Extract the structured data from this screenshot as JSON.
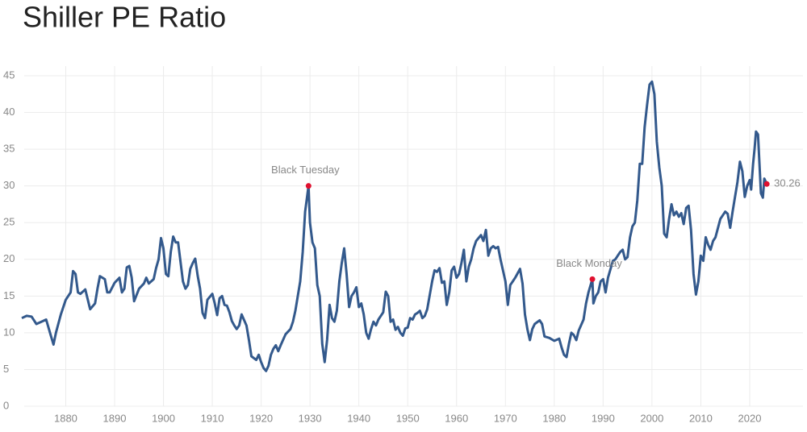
{
  "chart_data": {
    "type": "line",
    "title": "Shiller PE Ratio",
    "x": [
      1871,
      1872,
      1873,
      1874,
      1875,
      1876,
      1877,
      1877.5,
      1878,
      1879,
      1880,
      1881,
      1881.5,
      1882,
      1882.5,
      1883,
      1884,
      1885,
      1886,
      1886.5,
      1887,
      1888,
      1888.5,
      1889,
      1890,
      1891,
      1891.5,
      1892,
      1892.5,
      1893,
      1893.5,
      1894,
      1895,
      1896,
      1896.5,
      1897,
      1898,
      1898.5,
      1899,
      1899.5,
      1900,
      1900.5,
      1901,
      1901.5,
      1902,
      1902.5,
      1903,
      1904,
      1904.5,
      1905,
      1905.5,
      1906,
      1906.5,
      1907,
      1907.5,
      1908,
      1908.5,
      1909,
      1910,
      1910.5,
      1911,
      1911.5,
      1912,
      1912.5,
      1913,
      1913.5,
      1914,
      1914.5,
      1915,
      1915.5,
      1916,
      1917,
      1917.5,
      1918,
      1919,
      1919.5,
      1920,
      1920.5,
      1921,
      1921.5,
      1922,
      1922.5,
      1923,
      1923.5,
      1924,
      1925,
      1926,
      1926.5,
      1927,
      1928,
      1928.5,
      1929,
      1929.7,
      1930,
      1930.5,
      1931,
      1931.5,
      1932,
      1932.5,
      1933,
      1933.5,
      1934,
      1934.5,
      1935,
      1935.5,
      1936,
      1936.5,
      1937,
      1937.5,
      1938,
      1938.5,
      1939,
      1939.5,
      1940,
      1940.5,
      1941,
      1941.5,
      1942,
      1942.5,
      1943,
      1943.5,
      1944,
      1945,
      1945.5,
      1946,
      1946.5,
      1947,
      1947.5,
      1948,
      1948.5,
      1949,
      1949.5,
      1950,
      1950.5,
      1951,
      1951.5,
      1952,
      1952.5,
      1953,
      1953.5,
      1954,
      1955,
      1955.5,
      1956,
      1956.5,
      1957,
      1957.5,
      1958,
      1958.5,
      1959,
      1959.5,
      1960,
      1960.5,
      1961,
      1961.5,
      1962,
      1962.5,
      1963,
      1963.5,
      1964,
      1965,
      1965.5,
      1966,
      1966.5,
      1967,
      1967.5,
      1968,
      1968.5,
      1969,
      1970,
      1970.5,
      1971,
      1971.5,
      1972,
      1973,
      1973.5,
      1974,
      1974.5,
      1975,
      1975.5,
      1976,
      1977,
      1977.5,
      1978,
      1979,
      1980,
      1981,
      1981.5,
      1982,
      1982.5,
      1983,
      1983.5,
      1984,
      1984.5,
      1985,
      1986,
      1986.5,
      1987,
      1987.8,
      1988,
      1988.5,
      1989,
      1989.5,
      1990,
      1990.5,
      1991,
      1992,
      1992.5,
      1993,
      1993.5,
      1994,
      1994.5,
      1995,
      1995.5,
      1996,
      1996.5,
      1997,
      1997.5,
      1998,
      1998.5,
      1999,
      1999.5,
      2000,
      2000.5,
      2001,
      2001.5,
      2002,
      2002.5,
      2003,
      2003.5,
      2004,
      2004.5,
      2005,
      2005.5,
      2006,
      2006.5,
      2007,
      2007.5,
      2008,
      2008.5,
      2009,
      2009.5,
      2010,
      2010.5,
      2011,
      2011.5,
      2012,
      2012.5,
      2013,
      2014,
      2015,
      2015.5,
      2016,
      2016.5,
      2017,
      2017.5,
      2018,
      2018.5,
      2019,
      2019.5,
      2020,
      2020.3,
      2020.7,
      2021,
      2021.3,
      2021.7,
      2022,
      2022.3,
      2022.7,
      2023,
      2023.5
    ],
    "series": [
      {
        "color": "#33598c",
        "values": [
          12,
          12.3,
          12.2,
          11.2,
          11.5,
          11.8,
          9.5,
          8.4,
          10,
          12.5,
          14.5,
          15.5,
          18.4,
          18,
          15.5,
          15.3,
          15.9,
          13.2,
          14,
          16,
          17.7,
          17.3,
          15.5,
          15.5,
          16.8,
          17.5,
          15.5,
          16,
          18.9,
          19.1,
          17.5,
          14.3,
          16,
          16.7,
          17.5,
          16.7,
          17.3,
          18.8,
          20,
          22.9,
          21.5,
          18,
          17.7,
          21,
          23.1,
          22.3,
          22.3,
          17,
          16,
          16.5,
          18.7,
          19.5,
          20.1,
          17.8,
          16,
          12.7,
          12,
          14.5,
          15.3,
          14,
          12.4,
          14.7,
          15,
          13.8,
          13.7,
          12.8,
          11.6,
          11,
          10.5,
          11,
          12.5,
          11,
          9,
          6.8,
          6.3,
          7,
          6,
          5.2,
          4.8,
          5.5,
          7,
          7.8,
          8.3,
          7.5,
          8.3,
          9.8,
          10.5,
          11.5,
          13,
          17,
          21,
          26.5,
          30,
          25,
          22.3,
          21.5,
          16.5,
          15,
          8.5,
          6,
          9,
          13.8,
          12,
          11.5,
          13,
          17,
          19.5,
          21.5,
          18,
          13.5,
          15,
          15.5,
          16.2,
          13.5,
          14,
          12.5,
          10,
          9.2,
          10.5,
          11.5,
          11,
          11.8,
          12.8,
          15.6,
          15,
          11.5,
          11.8,
          10.4,
          10.8,
          10,
          9.6,
          10.6,
          10.7,
          12,
          11.8,
          12.5,
          12.7,
          13,
          12,
          12.3,
          13.2,
          17,
          18.5,
          18.3,
          18.8,
          16.8,
          17,
          13.8,
          15.5,
          18.5,
          19,
          17.5,
          18,
          19.5,
          21.3,
          17,
          19,
          20,
          21.5,
          22.5,
          23.3,
          22.5,
          24,
          20.5,
          21.5,
          21.8,
          21.5,
          21.7,
          20,
          17,
          13.8,
          16.5,
          17,
          17.5,
          18.7,
          16.7,
          12.5,
          10.5,
          9,
          10.5,
          11.2,
          11.7,
          11.2,
          9.5,
          9.3,
          8.9,
          9.2,
          8,
          7,
          6.7,
          8.5,
          10,
          9.7,
          9,
          10.3,
          11.8,
          14,
          15.5,
          17.3,
          14,
          15,
          15.5,
          17,
          17.3,
          15.5,
          17.5,
          19.8,
          20,
          20.5,
          21,
          21.3,
          20,
          20.3,
          23,
          24.5,
          25,
          28,
          33,
          33,
          38,
          41,
          43.8,
          44.2,
          42.5,
          36,
          32.5,
          30,
          23.5,
          23,
          25.5,
          27.5,
          26,
          26.5,
          25.8,
          26.3,
          24.8,
          27,
          27.3,
          24,
          18,
          15.2,
          17,
          20.5,
          19.8,
          23,
          22,
          21.3,
          22.5,
          23,
          25.5,
          26.5,
          26.2,
          24.3,
          26.5,
          28.5,
          30.5,
          33.3,
          32,
          28.5,
          30,
          30.8,
          29.5,
          33,
          35,
          37.4,
          37,
          33,
          29,
          28.4,
          31,
          30.26
        ]
      }
    ],
    "xlim": [
      1871.5,
      2024.3
    ],
    "xticks": [
      1880,
      1890,
      1900,
      1910,
      1920,
      1930,
      1940,
      1950,
      1960,
      1970,
      1980,
      1990,
      2000,
      2010,
      2020
    ],
    "ylim": [
      0,
      45
    ],
    "yticks": [
      0,
      5,
      10,
      15,
      20,
      25,
      30,
      35,
      40,
      45
    ],
    "grid": true,
    "annotations": [
      {
        "label": "Black Tuesday",
        "x": 1929.7,
        "value": 30,
        "color": "#e0102f"
      },
      {
        "label": "Black Monday",
        "x": 1987.8,
        "value": 17.3,
        "color": "#e0102f"
      },
      {
        "x": 2023.5,
        "value": 30.26,
        "color": "#e0102f"
      }
    ]
  }
}
